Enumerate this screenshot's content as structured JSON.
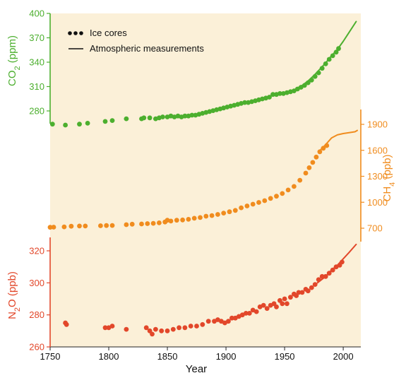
{
  "chart_data": {
    "type": "scatter",
    "xlabel": "Year",
    "xlim": [
      1750,
      2015
    ],
    "x_ticks": [
      "1750",
      "1800",
      "1850",
      "1900",
      "1950",
      "2000"
    ],
    "background_color": "#fbf0d8",
    "grid": false,
    "legend": {
      "position": "top-left",
      "entries": [
        {
          "label": "Ice cores",
          "marker": "dots"
        },
        {
          "label": "Atmospheric measurements",
          "marker": "line"
        }
      ]
    },
    "panels": [
      {
        "name": "CO2",
        "axis_label_main": "CO",
        "axis_label_sub": "2",
        "axis_label_unit": " (ppm)",
        "axis_side": "left",
        "color": "#4caf2e",
        "ylim": [
          265,
          400
        ],
        "y_ticks": [
          "280",
          "310",
          "340",
          "370",
          "400"
        ],
        "ice_cores": [
          [
            1752,
            277
          ],
          [
            1763,
            276
          ],
          [
            1775,
            277
          ],
          [
            1782,
            278
          ],
          [
            1797,
            280
          ],
          [
            1803,
            281
          ],
          [
            1815,
            283
          ],
          [
            1828,
            283
          ],
          [
            1830,
            284
          ],
          [
            1835,
            284
          ],
          [
            1840,
            283
          ],
          [
            1843,
            284
          ],
          [
            1846,
            285
          ],
          [
            1850,
            285
          ],
          [
            1853,
            286
          ],
          [
            1856,
            285
          ],
          [
            1859,
            286
          ],
          [
            1862,
            285
          ],
          [
            1865,
            286
          ],
          [
            1868,
            286
          ],
          [
            1871,
            287
          ],
          [
            1874,
            287
          ],
          [
            1877,
            288
          ],
          [
            1880,
            289
          ],
          [
            1883,
            290
          ],
          [
            1886,
            291
          ],
          [
            1889,
            292
          ],
          [
            1892,
            293
          ],
          [
            1895,
            294
          ],
          [
            1898,
            295
          ],
          [
            1901,
            296
          ],
          [
            1904,
            297
          ],
          [
            1907,
            298
          ],
          [
            1910,
            299
          ],
          [
            1913,
            300
          ],
          [
            1916,
            301
          ],
          [
            1919,
            301
          ],
          [
            1922,
            302
          ],
          [
            1925,
            303
          ],
          [
            1928,
            304
          ],
          [
            1931,
            305
          ],
          [
            1934,
            306
          ],
          [
            1937,
            307
          ],
          [
            1940,
            310
          ],
          [
            1943,
            310
          ],
          [
            1946,
            311
          ],
          [
            1949,
            311
          ],
          [
            1952,
            312
          ],
          [
            1955,
            313
          ],
          [
            1958,
            314
          ],
          [
            1961,
            316
          ],
          [
            1964,
            318
          ],
          [
            1967,
            320
          ],
          [
            1970,
            323
          ],
          [
            1973,
            326
          ],
          [
            1976,
            330
          ],
          [
            1979,
            334
          ],
          [
            1982,
            339
          ],
          [
            1985,
            344
          ],
          [
            1988,
            349
          ],
          [
            1991,
            353
          ],
          [
            1994,
            357
          ],
          [
            1996,
            361
          ]
        ],
        "measurements": [
          [
            1958,
            315
          ],
          [
            1965,
            320
          ],
          [
            1970,
            325
          ],
          [
            1975,
            331
          ],
          [
            1980,
            338
          ],
          [
            1985,
            345
          ],
          [
            1990,
            353
          ],
          [
            1995,
            360
          ],
          [
            2000,
            369
          ],
          [
            2005,
            379
          ],
          [
            2011,
            391
          ]
        ]
      },
      {
        "name": "CH4",
        "axis_label_main": "CH",
        "axis_label_sub": "4",
        "axis_label_unit": " (ppb)",
        "axis_side": "right",
        "color": "#f08c1e",
        "ylim": [
          700,
          1900
        ],
        "axis_extent": [
          550,
          1950
        ],
        "y_ticks": [
          "700",
          "1000",
          "1300",
          "1600",
          "1900"
        ],
        "ice_cores": [
          [
            1750,
            710
          ],
          [
            1753,
            712
          ],
          [
            1762,
            715
          ],
          [
            1768,
            722
          ],
          [
            1775,
            725
          ],
          [
            1780,
            725
          ],
          [
            1793,
            728
          ],
          [
            1798,
            730
          ],
          [
            1803,
            731
          ],
          [
            1815,
            740
          ],
          [
            1820,
            745
          ],
          [
            1828,
            748
          ],
          [
            1833,
            752
          ],
          [
            1838,
            755
          ],
          [
            1843,
            760
          ],
          [
            1848,
            770
          ],
          [
            1850,
            790
          ],
          [
            1853,
            780
          ],
          [
            1858,
            790
          ],
          [
            1863,
            793
          ],
          [
            1868,
            800
          ],
          [
            1873,
            812
          ],
          [
            1878,
            820
          ],
          [
            1883,
            835
          ],
          [
            1888,
            842
          ],
          [
            1893,
            855
          ],
          [
            1898,
            870
          ],
          [
            1903,
            885
          ],
          [
            1908,
            900
          ],
          [
            1913,
            930
          ],
          [
            1918,
            950
          ],
          [
            1923,
            970
          ],
          [
            1928,
            990
          ],
          [
            1933,
            1010
          ],
          [
            1938,
            1035
          ],
          [
            1943,
            1060
          ],
          [
            1948,
            1090
          ],
          [
            1953,
            1130
          ],
          [
            1958,
            1170
          ],
          [
            1963,
            1240
          ],
          [
            1968,
            1320
          ],
          [
            1971,
            1380
          ],
          [
            1974,
            1440
          ],
          [
            1977,
            1500
          ],
          [
            1980,
            1560
          ],
          [
            1983,
            1600
          ],
          [
            1986,
            1630
          ]
        ],
        "measurements": [
          [
            1979,
            1560
          ],
          [
            1985,
            1640
          ],
          [
            1990,
            1715
          ],
          [
            1995,
            1750
          ],
          [
            2000,
            1765
          ],
          [
            2005,
            1775
          ],
          [
            2010,
            1785
          ],
          [
            2012,
            1800
          ]
        ]
      },
      {
        "name": "N2O",
        "axis_label_main": "N",
        "axis_label_sub": "2",
        "axis_label_unit": "O (ppb)",
        "axis_side": "left",
        "color": "#e2472a",
        "ylim": [
          260,
          320
        ],
        "axis_extent": [
          260,
          329
        ],
        "y_ticks": [
          "260",
          "280",
          "300",
          "320"
        ],
        "ice_cores": [
          [
            1763,
            275
          ],
          [
            1764,
            274
          ],
          [
            1797,
            272
          ],
          [
            1800,
            272
          ],
          [
            1803,
            273
          ],
          [
            1815,
            271
          ],
          [
            1832,
            272
          ],
          [
            1835,
            270
          ],
          [
            1837,
            268
          ],
          [
            1840,
            271
          ],
          [
            1845,
            270
          ],
          [
            1850,
            270
          ],
          [
            1855,
            271
          ],
          [
            1860,
            272
          ],
          [
            1865,
            272
          ],
          [
            1870,
            273
          ],
          [
            1875,
            273
          ],
          [
            1880,
            274
          ],
          [
            1885,
            276
          ],
          [
            1890,
            276
          ],
          [
            1893,
            277
          ],
          [
            1896,
            276
          ],
          [
            1899,
            275
          ],
          [
            1902,
            276
          ],
          [
            1905,
            278
          ],
          [
            1908,
            278
          ],
          [
            1911,
            279
          ],
          [
            1914,
            280
          ],
          [
            1917,
            281
          ],
          [
            1920,
            281
          ],
          [
            1923,
            283
          ],
          [
            1926,
            282
          ],
          [
            1929,
            285
          ],
          [
            1932,
            286
          ],
          [
            1935,
            284
          ],
          [
            1938,
            286
          ],
          [
            1941,
            287
          ],
          [
            1943,
            285
          ],
          [
            1946,
            289
          ],
          [
            1948,
            287
          ],
          [
            1950,
            290
          ],
          [
            1952,
            287
          ],
          [
            1955,
            291
          ],
          [
            1958,
            293
          ],
          [
            1960,
            292
          ],
          [
            1962,
            294
          ],
          [
            1965,
            294
          ],
          [
            1968,
            296
          ],
          [
            1970,
            295
          ],
          [
            1973,
            297
          ],
          [
            1976,
            299
          ],
          [
            1979,
            302
          ],
          [
            1982,
            304
          ],
          [
            1985,
            304
          ],
          [
            1988,
            306
          ],
          [
            1991,
            308
          ],
          [
            1994,
            310
          ],
          [
            1997,
            311
          ],
          [
            1999,
            313
          ]
        ],
        "measurements": [
          [
            1978,
            300
          ],
          [
            1985,
            304
          ],
          [
            1990,
            308
          ],
          [
            1995,
            311
          ],
          [
            2000,
            315
          ],
          [
            2005,
            319
          ],
          [
            2011,
            324
          ]
        ]
      }
    ]
  }
}
